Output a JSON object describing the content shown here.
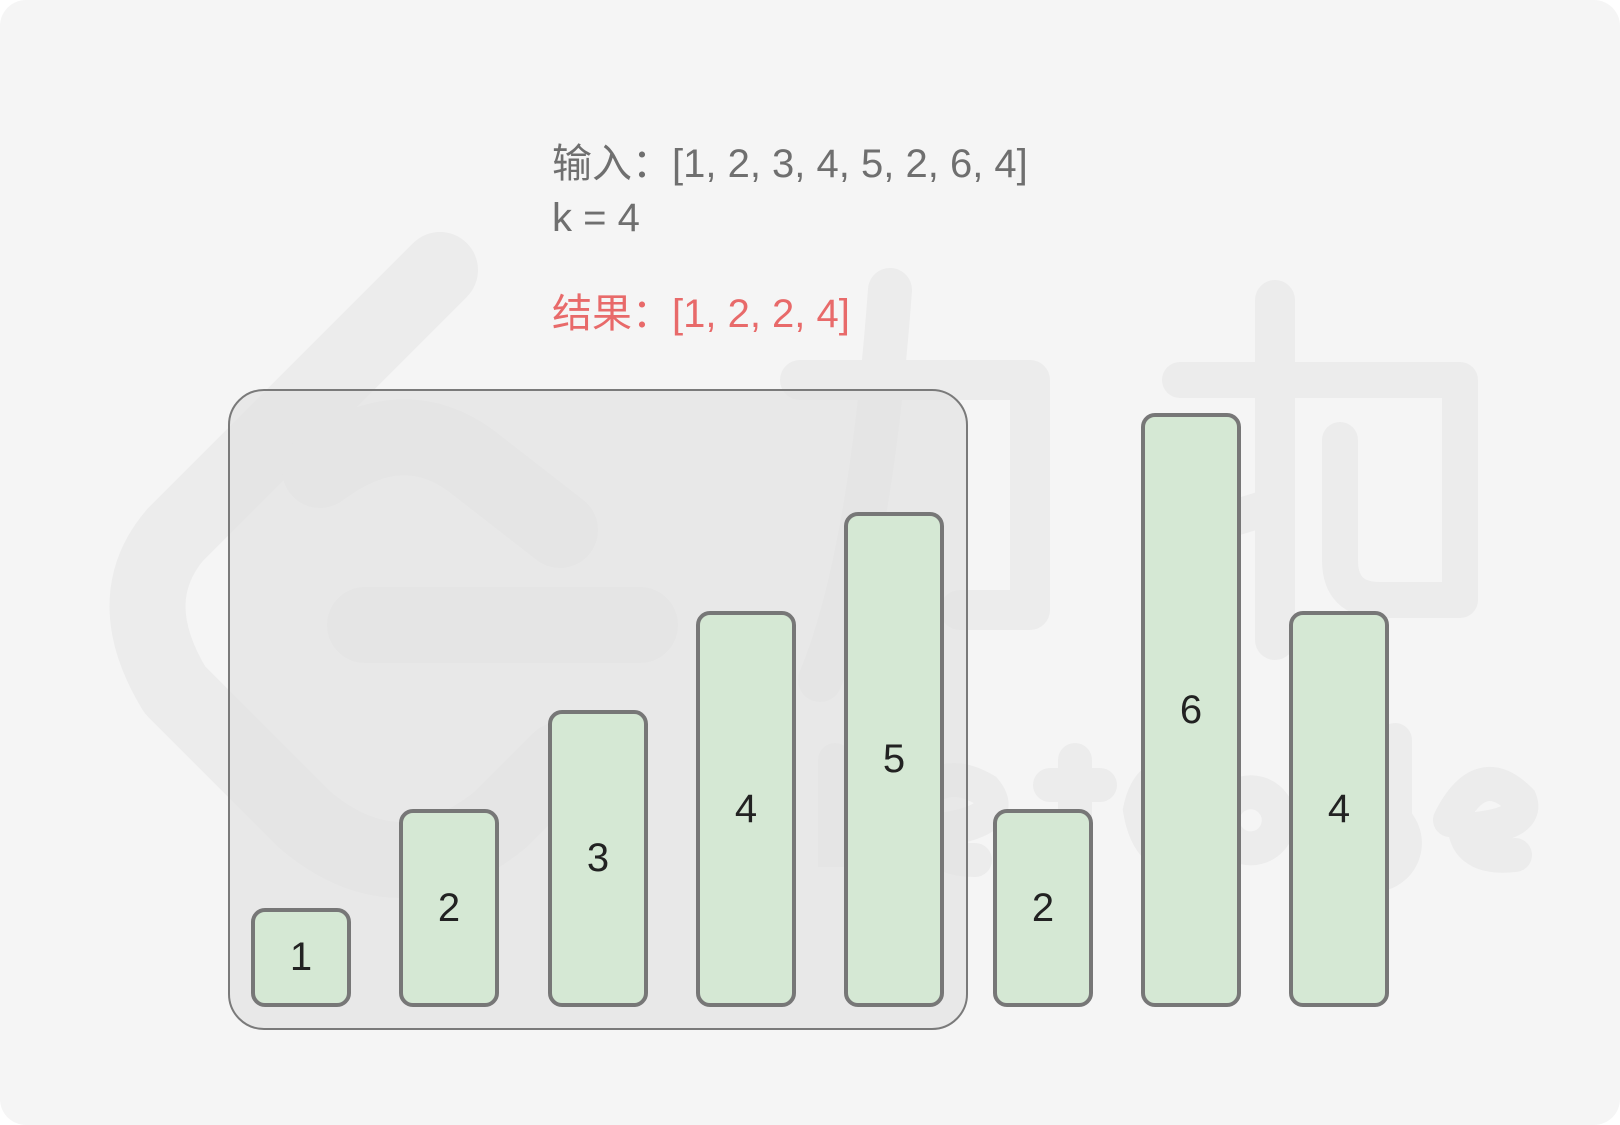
{
  "header": {
    "input_line": "输入：[1, 2, 3, 4, 5, 2, 6, 4]",
    "k_line": "k = 4",
    "result_line": "结果：[1, 2, 2, 4]"
  },
  "bars": [
    {
      "label": "1",
      "value": 1,
      "in_window": true
    },
    {
      "label": "2",
      "value": 2,
      "in_window": true
    },
    {
      "label": "3",
      "value": 3,
      "in_window": true
    },
    {
      "label": "4",
      "value": 4,
      "in_window": true
    },
    {
      "label": "5",
      "value": 5,
      "in_window": true
    },
    {
      "label": "2",
      "value": 2,
      "in_window": false
    },
    {
      "label": "6",
      "value": 6,
      "in_window": false
    },
    {
      "label": "4",
      "value": 4,
      "in_window": false
    }
  ],
  "colors": {
    "bar_fill": "#d5e8d4",
    "bar_border": "#777777",
    "result_text": "#e86a6a",
    "input_text": "#6f6f6f",
    "window_fill": "#e2e2e2"
  },
  "watermark": {
    "icon": "leetcode-logo-icon"
  }
}
